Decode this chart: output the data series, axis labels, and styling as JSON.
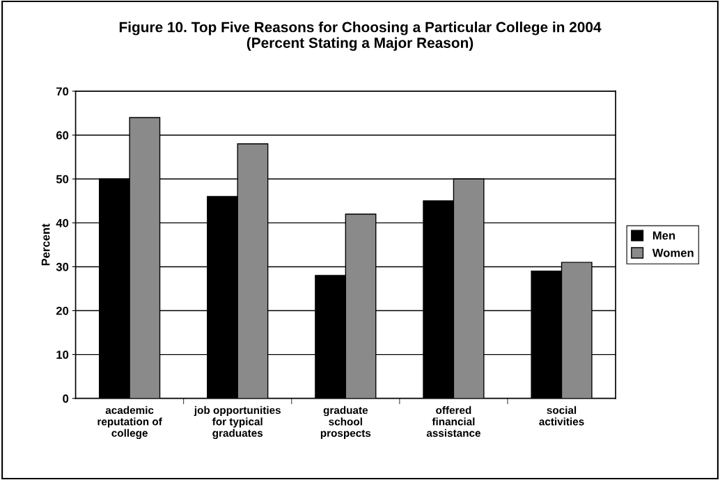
{
  "chart_data": {
    "type": "bar",
    "title": "Figure 10. Top Five Reasons for Choosing a Particular College in 2004\n(Percent Stating a Major Reason)",
    "ylabel": "Percent",
    "categories": [
      "academic\nreputation of\ncollege",
      "job opportunities\nfor typical\ngraduates",
      "graduate\nschool\nprospects",
      "offered\nfinancial\nassistance",
      "social\nactivities"
    ],
    "series": [
      {
        "name": "Men",
        "color": "#000000",
        "values": [
          50,
          46,
          28,
          45,
          29
        ]
      },
      {
        "name": "Women",
        "color": "#8a8a8a",
        "values": [
          64,
          58,
          42,
          50,
          31
        ]
      }
    ],
    "ylim": [
      0,
      70
    ],
    "yticks": [
      0,
      10,
      20,
      30,
      40,
      50,
      60,
      70
    ],
    "grid": "y",
    "legend": "right"
  }
}
